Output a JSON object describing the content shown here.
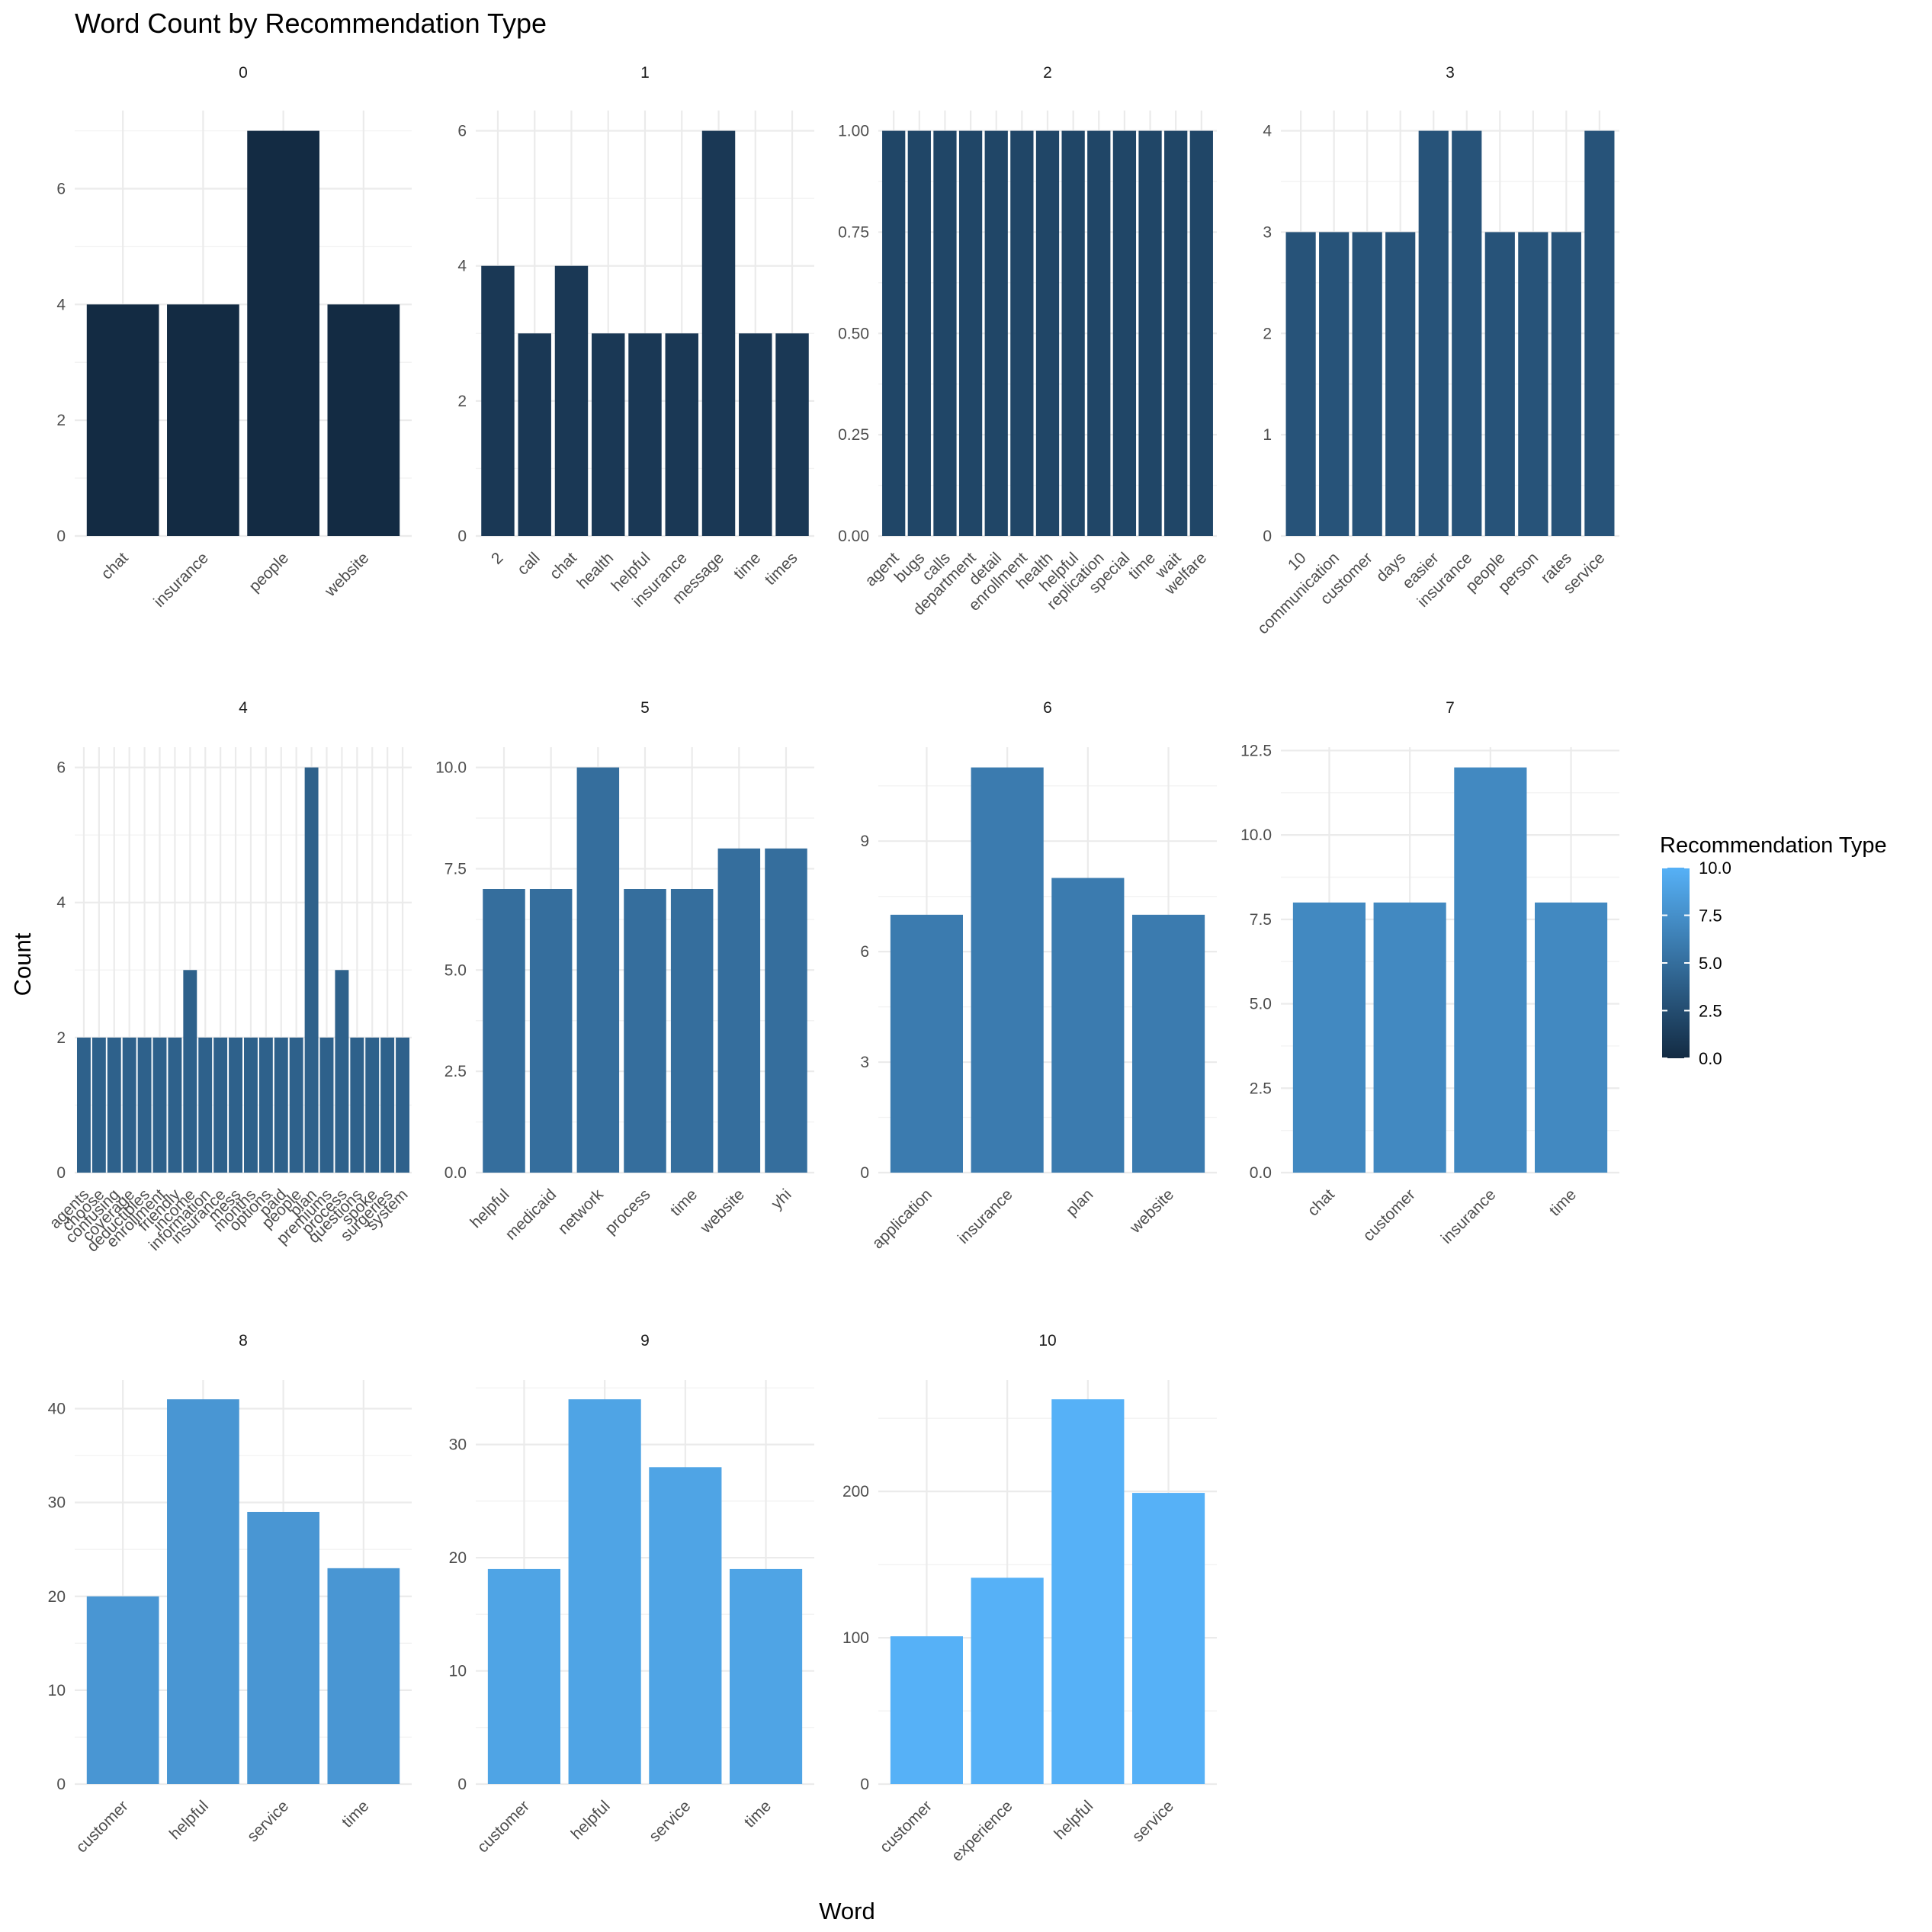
{
  "chart_data": {
    "type": "bar",
    "title": "Word Count by Recommendation Type",
    "xlabel": "Word",
    "ylabel": "Count",
    "legend": {
      "title": "Recommendation Type",
      "placement": "right",
      "range": [
        0,
        10
      ],
      "ticks": [
        "0.0",
        "2.5",
        "5.0",
        "7.5",
        "10.0"
      ],
      "color_low": "#132b43",
      "color_high": "#56b1f7"
    },
    "grid": true,
    "panels": [
      {
        "label": "0",
        "type_value": 0,
        "ylim": [
          0,
          7.35
        ],
        "yticks": [
          0,
          2,
          4,
          6
        ],
        "yticklabels": [
          "0",
          "2",
          "4",
          "6"
        ],
        "categories": [
          "chat",
          "insurance",
          "people",
          "website"
        ],
        "values": [
          4,
          4,
          7,
          4
        ]
      },
      {
        "label": "1",
        "type_value": 1,
        "ylim": [
          0,
          6.3
        ],
        "yticks": [
          0,
          2,
          4,
          6
        ],
        "yticklabels": [
          "0",
          "2",
          "4",
          "6"
        ],
        "categories": [
          "2",
          "call",
          "chat",
          "health",
          "helpful",
          "insurance",
          "message",
          "time",
          "times"
        ],
        "values": [
          4,
          3,
          4,
          3,
          3,
          3,
          6,
          3,
          3
        ]
      },
      {
        "label": "2",
        "type_value": 2,
        "ylim": [
          0,
          1.05
        ],
        "yticks": [
          0,
          0.25,
          0.5,
          0.75,
          1.0
        ],
        "yticklabels": [
          "0.00",
          "0.25",
          "0.50",
          "0.75",
          "1.00"
        ],
        "categories": [
          "agent",
          "bugs",
          "calls",
          "department",
          "detail",
          "enrollment",
          "health",
          "helpful",
          "replication",
          "special",
          "time",
          "wait",
          "welfare"
        ],
        "values": [
          1,
          1,
          1,
          1,
          1,
          1,
          1,
          1,
          1,
          1,
          1,
          1,
          1
        ]
      },
      {
        "label": "3",
        "type_value": 3,
        "ylim": [
          0,
          4.2
        ],
        "yticks": [
          0,
          1,
          2,
          3,
          4
        ],
        "yticklabels": [
          "0",
          "1",
          "2",
          "3",
          "4"
        ],
        "categories": [
          "10",
          "communication",
          "customer",
          "days",
          "easier",
          "insurance",
          "people",
          "person",
          "rates",
          "service"
        ],
        "values": [
          3,
          3,
          3,
          3,
          4,
          4,
          3,
          3,
          3,
          4
        ]
      },
      {
        "label": "4",
        "type_value": 4,
        "ylim": [
          0,
          6.3
        ],
        "yticks": [
          0,
          2,
          4,
          6
        ],
        "yticklabels": [
          "0",
          "2",
          "4",
          "6"
        ],
        "categories": [
          "agents",
          "choose",
          "confusing",
          "coverage",
          "deductibles",
          "enrollment",
          "friendly",
          "income",
          "information",
          "insurance",
          "mess",
          "months",
          "options",
          "paid",
          "people",
          "plan",
          "premiums",
          "process",
          "questions",
          "spoke",
          "surgeries",
          "system"
        ],
        "values": [
          2,
          2,
          2,
          2,
          2,
          2,
          2,
          3,
          2,
          2,
          2,
          2,
          2,
          2,
          2,
          6,
          2,
          3,
          2,
          2,
          2,
          2
        ]
      },
      {
        "label": "5",
        "type_value": 5,
        "ylim": [
          0,
          10.5
        ],
        "yticks": [
          0,
          2.5,
          5,
          7.5,
          10
        ],
        "yticklabels": [
          "0.0",
          "2.5",
          "5.0",
          "7.5",
          "10.0"
        ],
        "categories": [
          "helpful",
          "medicaid",
          "network",
          "process",
          "time",
          "website",
          "yhi"
        ],
        "values": [
          7,
          7,
          10,
          7,
          7,
          8,
          8
        ]
      },
      {
        "label": "6",
        "type_value": 6,
        "ylim": [
          0,
          11.55
        ],
        "yticks": [
          0,
          3,
          6,
          9
        ],
        "yticklabels": [
          "0",
          "3",
          "6",
          "9"
        ],
        "categories": [
          "application",
          "insurance",
          "plan",
          "website"
        ],
        "values": [
          7,
          11,
          8,
          7
        ]
      },
      {
        "label": "7",
        "type_value": 7,
        "ylim": [
          0,
          12.6
        ],
        "yticks": [
          0,
          2.5,
          5,
          7.5,
          10,
          12.5
        ],
        "yticklabels": [
          "0.0",
          "2.5",
          "5.0",
          "7.5",
          "10.0",
          "12.5"
        ],
        "categories": [
          "chat",
          "customer",
          "insurance",
          "time"
        ],
        "values": [
          8,
          8,
          12,
          8
        ]
      },
      {
        "label": "8",
        "type_value": 8,
        "ylim": [
          0,
          43.05
        ],
        "yticks": [
          0,
          10,
          20,
          30,
          40
        ],
        "yticklabels": [
          "0",
          "10",
          "20",
          "30",
          "40"
        ],
        "categories": [
          "customer",
          "helpful",
          "service",
          "time"
        ],
        "values": [
          20,
          41,
          29,
          23
        ]
      },
      {
        "label": "9",
        "type_value": 9,
        "ylim": [
          0,
          35.7
        ],
        "yticks": [
          0,
          10,
          20,
          30
        ],
        "yticklabels": [
          "0",
          "10",
          "20",
          "30"
        ],
        "categories": [
          "customer",
          "helpful",
          "service",
          "time"
        ],
        "values": [
          19,
          34,
          28,
          19
        ]
      },
      {
        "label": "10",
        "type_value": 10,
        "ylim": [
          0,
          276.15
        ],
        "yticks": [
          0,
          100,
          200
        ],
        "yticklabels": [
          "0",
          "100",
          "200"
        ],
        "categories": [
          "customer",
          "experience",
          "helpful",
          "service"
        ],
        "values": [
          101,
          141,
          263,
          199
        ]
      }
    ]
  }
}
